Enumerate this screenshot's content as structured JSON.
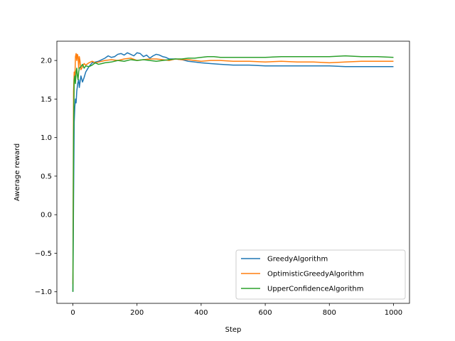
{
  "chart_data": {
    "type": "line",
    "title": "",
    "xlabel": "Step",
    "ylabel": "Awerage reward",
    "xlim": [
      -50,
      1050
    ],
    "ylim": [
      -1.15,
      2.25
    ],
    "xticks": [
      0,
      200,
      400,
      600,
      800,
      1000
    ],
    "xtick_labels": [
      "0",
      "200",
      "400",
      "600",
      "800",
      "1000"
    ],
    "yticks": [
      -1.0,
      -0.5,
      0.0,
      0.5,
      1.0,
      1.5,
      2.0
    ],
    "ytick_labels": [
      "−1.0",
      "−0.5",
      "0.0",
      "0.5",
      "1.0",
      "1.5",
      "2.0"
    ],
    "grid": false,
    "legend_position": "lower-right",
    "series": [
      {
        "name": "GreedyAlgorithm",
        "color": "#1f77b4",
        "x": [
          0,
          2,
          4,
          6,
          8,
          10,
          12,
          15,
          18,
          20,
          25,
          30,
          35,
          40,
          50,
          60,
          70,
          80,
          90,
          100,
          110,
          120,
          130,
          140,
          150,
          160,
          170,
          180,
          190,
          200,
          210,
          220,
          230,
          240,
          250,
          260,
          270,
          280,
          290,
          300,
          320,
          340,
          360,
          380,
          400,
          430,
          460,
          500,
          550,
          600,
          650,
          700,
          750,
          800,
          850,
          900,
          950,
          1000
        ],
        "y": [
          -1.0,
          0.2,
          1.2,
          1.4,
          1.5,
          1.45,
          1.6,
          1.7,
          1.75,
          1.65,
          1.8,
          1.72,
          1.78,
          1.85,
          1.92,
          1.97,
          1.98,
          1.99,
          2.01,
          2.03,
          2.06,
          2.04,
          2.05,
          2.08,
          2.09,
          2.07,
          2.1,
          2.08,
          2.06,
          2.1,
          2.09,
          2.05,
          2.07,
          2.03,
          2.06,
          2.08,
          2.07,
          2.05,
          2.04,
          2.02,
          2.02,
          2.01,
          1.99,
          1.98,
          1.97,
          1.96,
          1.95,
          1.94,
          1.94,
          1.93,
          1.93,
          1.93,
          1.93,
          1.93,
          1.92,
          1.92,
          1.92,
          1.92
        ]
      },
      {
        "name": "OptimisticGreedyAlgorithm",
        "color": "#ff7f0e",
        "x": [
          0,
          2,
          4,
          6,
          8,
          10,
          12,
          14,
          16,
          18,
          20,
          22,
          25,
          30,
          35,
          40,
          50,
          60,
          70,
          80,
          90,
          100,
          120,
          140,
          160,
          180,
          200,
          220,
          240,
          260,
          280,
          300,
          320,
          340,
          360,
          380,
          400,
          430,
          460,
          500,
          550,
          600,
          650,
          700,
          750,
          800,
          850,
          900,
          950,
          1000
        ],
        "y": [
          -0.9,
          1.6,
          1.85,
          1.75,
          2.05,
          2.09,
          2.0,
          2.08,
          2.05,
          1.9,
          2.05,
          2.0,
          1.88,
          1.92,
          1.96,
          1.94,
          1.97,
          1.99,
          1.97,
          1.98,
          1.99,
          2.0,
          2.01,
          2.0,
          2.02,
          2.03,
          2.0,
          2.01,
          2.02,
          2.02,
          2.01,
          2.0,
          2.02,
          2.01,
          2.01,
          2.0,
          1.99,
          2.0,
          2.0,
          1.99,
          1.99,
          1.98,
          1.99,
          1.98,
          1.98,
          1.97,
          1.98,
          1.99,
          1.99,
          1.99
        ]
      },
      {
        "name": "UpperConfidenceAlgorithm",
        "color": "#2ca02c",
        "x": [
          0,
          2,
          4,
          6,
          8,
          10,
          12,
          14,
          16,
          18,
          20,
          25,
          30,
          35,
          40,
          50,
          60,
          70,
          80,
          90,
          100,
          120,
          140,
          160,
          180,
          200,
          220,
          240,
          260,
          280,
          300,
          320,
          340,
          360,
          380,
          400,
          420,
          440,
          460,
          500,
          550,
          600,
          650,
          700,
          750,
          800,
          850,
          900,
          950,
          1000
        ],
        "y": [
          -1.0,
          1.0,
          1.75,
          1.8,
          1.7,
          1.85,
          1.9,
          1.8,
          1.75,
          1.85,
          1.9,
          1.92,
          1.95,
          1.9,
          1.93,
          1.92,
          1.94,
          1.97,
          1.95,
          1.96,
          1.97,
          1.98,
          2.0,
          1.99,
          2.01,
          2.0,
          2.01,
          2.0,
          1.99,
          2.0,
          2.01,
          2.02,
          2.02,
          2.03,
          2.03,
          2.04,
          2.05,
          2.05,
          2.04,
          2.04,
          2.04,
          2.04,
          2.05,
          2.05,
          2.05,
          2.05,
          2.06,
          2.05,
          2.05,
          2.04
        ]
      }
    ]
  }
}
